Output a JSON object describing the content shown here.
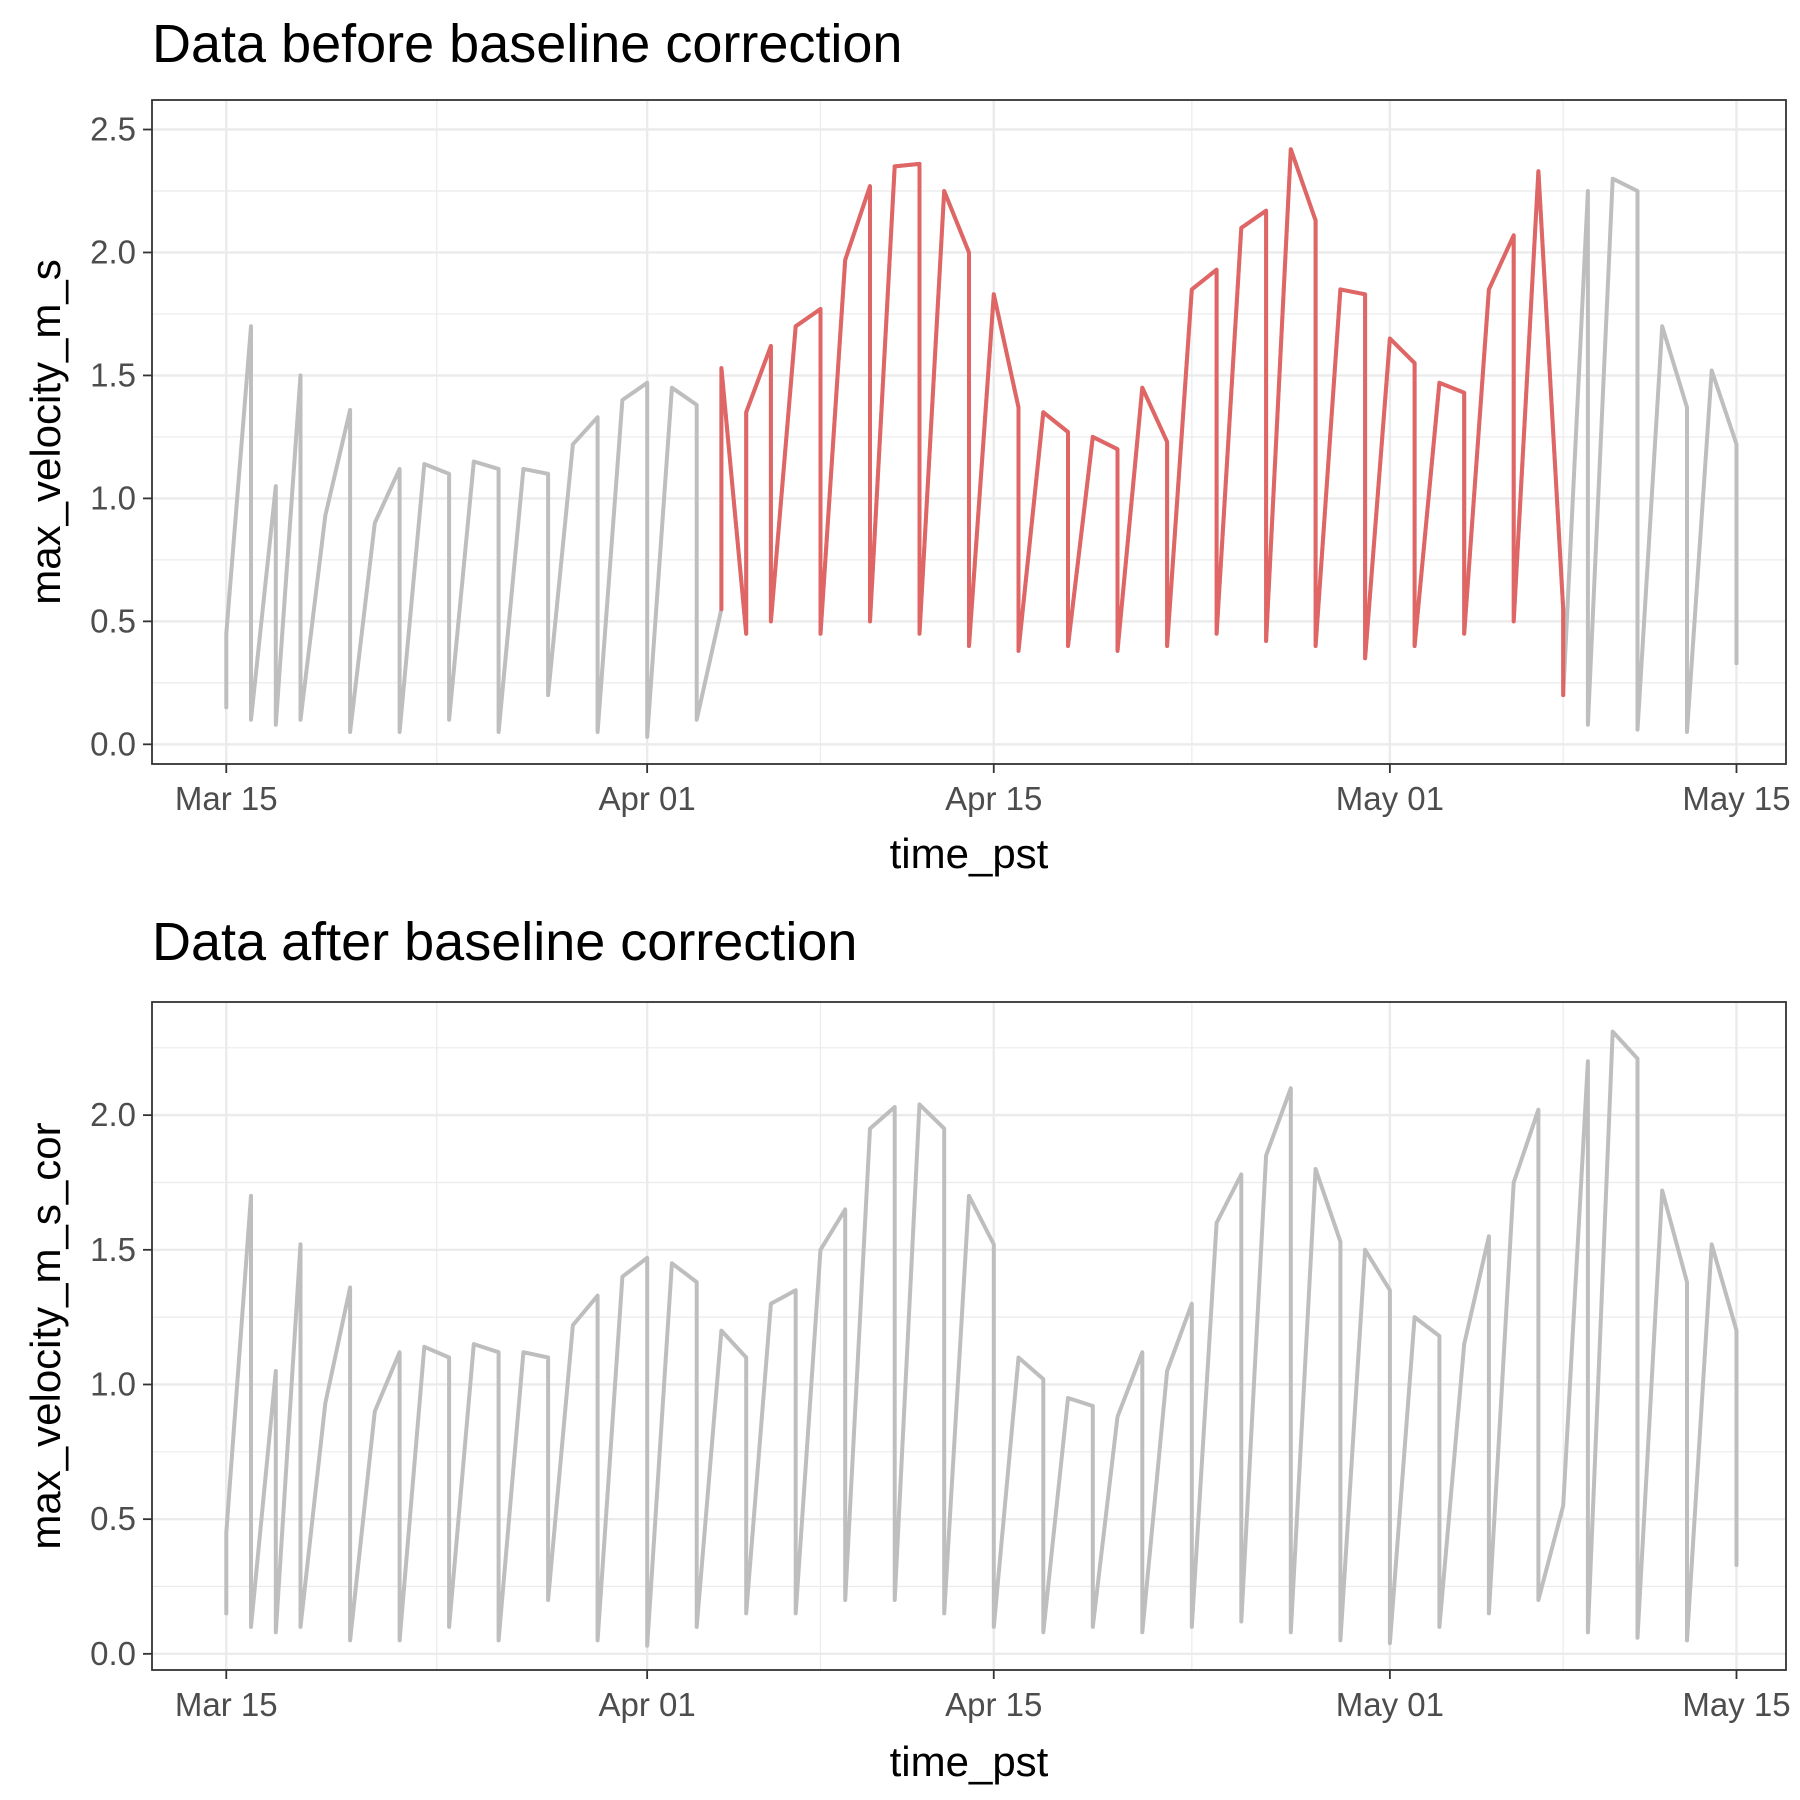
{
  "chart_data": [
    {
      "type": "line",
      "title": "Data before baseline correction",
      "xlabel": "time_pst",
      "ylabel": "max_velocity_m_s",
      "x_ticks": [
        "Mar 15",
        "Apr 01",
        "Apr 15",
        "May 01",
        "May 15"
      ],
      "y_ticks": [
        "0.0",
        "0.5",
        "1.0",
        "1.5",
        "2.0",
        "2.5"
      ],
      "xlim": [
        "2023-03-12",
        "2023-05-17"
      ],
      "ylim": [
        -0.08,
        2.62
      ],
      "grid": true,
      "series_colors": {
        "uncorrected": "#bebebe",
        "drift_period": "#e06666"
      },
      "highlight_range": [
        "2023-04-04",
        "2023-05-08"
      ],
      "series": [
        {
          "values": [
            [
              "2023-03-15",
              0.15
            ],
            [
              "2023-03-15",
              0.45
            ],
            [
              "2023-03-16",
              1.7
            ],
            [
              "2023-03-16",
              0.1
            ],
            [
              "2023-03-17",
              1.05
            ],
            [
              "2023-03-17",
              0.08
            ],
            [
              "2023-03-18",
              1.5
            ],
            [
              "2023-03-18",
              0.1
            ],
            [
              "2023-03-19",
              0.93
            ],
            [
              "2023-03-20",
              1.36
            ],
            [
              "2023-03-20",
              0.05
            ],
            [
              "2023-03-21",
              0.9
            ],
            [
              "2023-03-22",
              1.12
            ],
            [
              "2023-03-22",
              0.05
            ],
            [
              "2023-03-23",
              1.14
            ],
            [
              "2023-03-24",
              1.1
            ],
            [
              "2023-03-24",
              0.1
            ],
            [
              "2023-03-25",
              1.15
            ],
            [
              "2023-03-26",
              1.12
            ],
            [
              "2023-03-26",
              0.05
            ],
            [
              "2023-03-27",
              1.12
            ],
            [
              "2023-03-28",
              1.1
            ],
            [
              "2023-03-28",
              0.2
            ],
            [
              "2023-03-29",
              1.22
            ],
            [
              "2023-03-30",
              1.33
            ],
            [
              "2023-03-30",
              0.05
            ],
            [
              "2023-03-31",
              1.4
            ],
            [
              "2023-04-01",
              1.47
            ],
            [
              "2023-04-01",
              0.03
            ],
            [
              "2023-04-02",
              1.45
            ],
            [
              "2023-04-03",
              1.38
            ],
            [
              "2023-04-03",
              0.1
            ],
            [
              "2023-04-04",
              0.55
            ],
            [
              "2023-04-04",
              1.53
            ],
            [
              "2023-04-05",
              0.45
            ],
            [
              "2023-04-05",
              1.35
            ],
            [
              "2023-04-06",
              1.62
            ],
            [
              "2023-04-06",
              0.5
            ],
            [
              "2023-04-07",
              1.7
            ],
            [
              "2023-04-08",
              1.77
            ],
            [
              "2023-04-08",
              0.45
            ],
            [
              "2023-04-09",
              1.97
            ],
            [
              "2023-04-10",
              2.27
            ],
            [
              "2023-04-10",
              0.5
            ],
            [
              "2023-04-11",
              2.35
            ],
            [
              "2023-04-12",
              2.36
            ],
            [
              "2023-04-12",
              0.45
            ],
            [
              "2023-04-13",
              2.25
            ],
            [
              "2023-04-14",
              2.0
            ],
            [
              "2023-04-14",
              0.4
            ],
            [
              "2023-04-15",
              1.83
            ],
            [
              "2023-04-16",
              1.37
            ],
            [
              "2023-04-16",
              0.38
            ],
            [
              "2023-04-17",
              1.35
            ],
            [
              "2023-04-18",
              1.27
            ],
            [
              "2023-04-18",
              0.4
            ],
            [
              "2023-04-19",
              1.25
            ],
            [
              "2023-04-20",
              1.2
            ],
            [
              "2023-04-20",
              0.38
            ],
            [
              "2023-04-21",
              1.45
            ],
            [
              "2023-04-22",
              1.23
            ],
            [
              "2023-04-22",
              0.4
            ],
            [
              "2023-04-23",
              1.85
            ],
            [
              "2023-04-24",
              1.93
            ],
            [
              "2023-04-24",
              0.45
            ],
            [
              "2023-04-25",
              2.1
            ],
            [
              "2023-04-26",
              2.17
            ],
            [
              "2023-04-26",
              0.42
            ],
            [
              "2023-04-27",
              2.42
            ],
            [
              "2023-04-28",
              2.13
            ],
            [
              "2023-04-28",
              0.4
            ],
            [
              "2023-04-29",
              1.85
            ],
            [
              "2023-04-30",
              1.83
            ],
            [
              "2023-04-30",
              0.35
            ],
            [
              "2023-05-01",
              1.65
            ],
            [
              "2023-05-02",
              1.55
            ],
            [
              "2023-05-02",
              0.4
            ],
            [
              "2023-05-03",
              1.47
            ],
            [
              "2023-05-04",
              1.43
            ],
            [
              "2023-05-04",
              0.45
            ],
            [
              "2023-05-05",
              1.85
            ],
            [
              "2023-05-06",
              2.07
            ],
            [
              "2023-05-06",
              0.5
            ],
            [
              "2023-05-07",
              2.33
            ],
            [
              "2023-05-08",
              0.55
            ],
            [
              "2023-05-08",
              0.2
            ],
            [
              "2023-05-09",
              2.25
            ],
            [
              "2023-05-09",
              0.08
            ],
            [
              "2023-05-10",
              2.3
            ],
            [
              "2023-05-11",
              2.25
            ],
            [
              "2023-05-11",
              0.06
            ],
            [
              "2023-05-12",
              1.7
            ],
            [
              "2023-05-13",
              1.37
            ],
            [
              "2023-05-13",
              0.05
            ],
            [
              "2023-05-14",
              1.52
            ],
            [
              "2023-05-15",
              1.22
            ],
            [
              "2023-05-15",
              0.33
            ]
          ]
        }
      ]
    },
    {
      "type": "line",
      "title": "Data after baseline correction",
      "xlabel": "time_pst",
      "ylabel": "max_velocity_m_s_cor",
      "x_ticks": [
        "Mar 15",
        "Apr 01",
        "Apr 15",
        "May 01",
        "May 15"
      ],
      "y_ticks": [
        "0.0",
        "0.5",
        "1.0",
        "1.5",
        "2.0"
      ],
      "xlim": [
        "2023-03-12",
        "2023-05-17"
      ],
      "ylim": [
        -0.06,
        2.42
      ],
      "grid": true,
      "series_colors": {
        "corrected": "#bebebe"
      },
      "series": [
        {
          "values": [
            [
              "2023-03-15",
              0.15
            ],
            [
              "2023-03-15",
              0.45
            ],
            [
              "2023-03-16",
              1.7
            ],
            [
              "2023-03-16",
              0.1
            ],
            [
              "2023-03-17",
              1.05
            ],
            [
              "2023-03-17",
              0.08
            ],
            [
              "2023-03-18",
              1.52
            ],
            [
              "2023-03-18",
              0.1
            ],
            [
              "2023-03-19",
              0.93
            ],
            [
              "2023-03-20",
              1.36
            ],
            [
              "2023-03-20",
              0.05
            ],
            [
              "2023-03-21",
              0.9
            ],
            [
              "2023-03-22",
              1.12
            ],
            [
              "2023-03-22",
              0.05
            ],
            [
              "2023-03-23",
              1.14
            ],
            [
              "2023-03-24",
              1.1
            ],
            [
              "2023-03-24",
              0.1
            ],
            [
              "2023-03-25",
              1.15
            ],
            [
              "2023-03-26",
              1.12
            ],
            [
              "2023-03-26",
              0.05
            ],
            [
              "2023-03-27",
              1.12
            ],
            [
              "2023-03-28",
              1.1
            ],
            [
              "2023-03-28",
              0.2
            ],
            [
              "2023-03-29",
              1.22
            ],
            [
              "2023-03-30",
              1.33
            ],
            [
              "2023-03-30",
              0.05
            ],
            [
              "2023-03-31",
              1.4
            ],
            [
              "2023-04-01",
              1.47
            ],
            [
              "2023-04-01",
              0.03
            ],
            [
              "2023-04-02",
              1.45
            ],
            [
              "2023-04-03",
              1.38
            ],
            [
              "2023-04-03",
              0.1
            ],
            [
              "2023-04-04",
              1.2
            ],
            [
              "2023-04-05",
              1.1
            ],
            [
              "2023-04-05",
              0.15
            ],
            [
              "2023-04-06",
              1.3
            ],
            [
              "2023-04-07",
              1.35
            ],
            [
              "2023-04-07",
              0.15
            ],
            [
              "2023-04-08",
              1.5
            ],
            [
              "2023-04-09",
              1.65
            ],
            [
              "2023-04-09",
              0.2
            ],
            [
              "2023-04-10",
              1.95
            ],
            [
              "2023-04-11",
              2.03
            ],
            [
              "2023-04-11",
              0.2
            ],
            [
              "2023-04-12",
              2.04
            ],
            [
              "2023-04-13",
              1.95
            ],
            [
              "2023-04-13",
              0.15
            ],
            [
              "2023-04-14",
              1.7
            ],
            [
              "2023-04-15",
              1.52
            ],
            [
              "2023-04-15",
              0.1
            ],
            [
              "2023-04-16",
              1.1
            ],
            [
              "2023-04-17",
              1.02
            ],
            [
              "2023-04-17",
              0.08
            ],
            [
              "2023-04-18",
              0.95
            ],
            [
              "2023-04-19",
              0.92
            ],
            [
              "2023-04-19",
              0.1
            ],
            [
              "2023-04-20",
              0.88
            ],
            [
              "2023-04-21",
              1.12
            ],
            [
              "2023-04-21",
              0.08
            ],
            [
              "2023-04-22",
              1.05
            ],
            [
              "2023-04-23",
              1.3
            ],
            [
              "2023-04-23",
              0.1
            ],
            [
              "2023-04-24",
              1.6
            ],
            [
              "2023-04-25",
              1.78
            ],
            [
              "2023-04-25",
              0.12
            ],
            [
              "2023-04-26",
              1.85
            ],
            [
              "2023-04-27",
              2.1
            ],
            [
              "2023-04-27",
              0.08
            ],
            [
              "2023-04-28",
              1.8
            ],
            [
              "2023-04-29",
              1.53
            ],
            [
              "2023-04-29",
              0.05
            ],
            [
              "2023-04-30",
              1.5
            ],
            [
              "2023-05-01",
              1.35
            ],
            [
              "2023-05-01",
              0.04
            ],
            [
              "2023-05-02",
              1.25
            ],
            [
              "2023-05-03",
              1.18
            ],
            [
              "2023-05-03",
              0.1
            ],
            [
              "2023-05-04",
              1.15
            ],
            [
              "2023-05-05",
              1.55
            ],
            [
              "2023-05-05",
              0.15
            ],
            [
              "2023-05-06",
              1.75
            ],
            [
              "2023-05-07",
              2.02
            ],
            [
              "2023-05-07",
              0.2
            ],
            [
              "2023-05-08",
              0.55
            ],
            [
              "2023-05-09",
              2.2
            ],
            [
              "2023-05-09",
              0.08
            ],
            [
              "2023-05-10",
              2.31
            ],
            [
              "2023-05-11",
              2.21
            ],
            [
              "2023-05-11",
              0.06
            ],
            [
              "2023-05-12",
              1.72
            ],
            [
              "2023-05-13",
              1.38
            ],
            [
              "2023-05-13",
              0.05
            ],
            [
              "2023-05-14",
              1.52
            ],
            [
              "2023-05-15",
              1.2
            ],
            [
              "2023-05-15",
              0.33
            ]
          ]
        }
      ]
    }
  ]
}
